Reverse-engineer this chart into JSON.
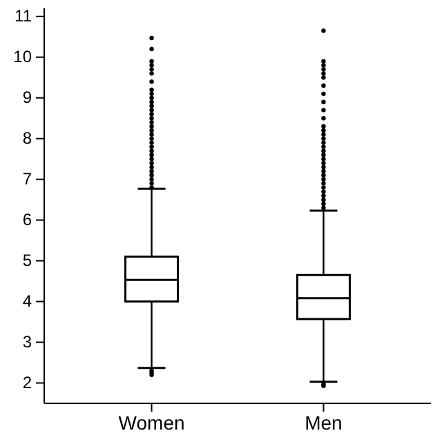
{
  "chart_data": {
    "type": "box",
    "categories": [
      "Women",
      "Men"
    ],
    "boxes": [
      {
        "low": 2.37,
        "q1": 4.0,
        "median": 4.53,
        "q3": 5.1,
        "high": 6.77,
        "outliers": [
          2.3,
          2.25,
          2.2,
          6.8,
          6.9,
          7.0,
          7.1,
          7.2,
          7.3,
          7.4,
          7.5,
          7.6,
          7.7,
          7.8,
          7.9,
          8.0,
          8.1,
          8.2,
          8.3,
          8.4,
          8.5,
          8.6,
          8.7,
          8.8,
          8.9,
          9.0,
          9.1,
          9.2,
          9.4,
          9.6,
          9.7,
          9.8,
          9.9,
          10.2,
          10.47
        ]
      },
      {
        "low": 2.03,
        "q1": 3.57,
        "median": 4.08,
        "q3": 4.65,
        "high": 6.23,
        "outliers": [
          1.97,
          1.93,
          6.3,
          6.4,
          6.5,
          6.6,
          6.7,
          6.8,
          6.9,
          7.0,
          7.1,
          7.2,
          7.3,
          7.4,
          7.5,
          7.6,
          7.7,
          7.8,
          7.9,
          8.0,
          8.1,
          8.2,
          8.3,
          8.5,
          8.7,
          8.9,
          9.1,
          9.3,
          9.5,
          9.6,
          9.7,
          9.8,
          9.9,
          10.65
        ]
      }
    ],
    "ylim": [
      1.5,
      11.2
    ],
    "yticks": [
      2,
      3,
      4,
      5,
      6,
      7,
      8,
      9,
      10,
      11
    ]
  }
}
